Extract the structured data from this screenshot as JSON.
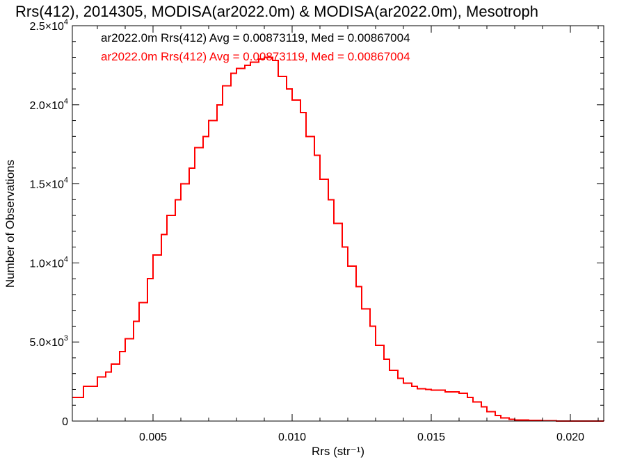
{
  "chart_data": {
    "type": "line",
    "title": "Rrs(412), 2014305, MODISA(ar2022.0m) & MODISA(ar2022.0m), Mesotroph",
    "xlabel": "Rrs (str⁻¹)",
    "ylabel": "Number of Observations",
    "xlim": [
      0.0021,
      0.0212
    ],
    "ylim": [
      0,
      25000
    ],
    "x_ticks": [
      {
        "value": 0.005,
        "label": "0.005"
      },
      {
        "value": 0.01,
        "label": "0.010"
      },
      {
        "value": 0.015,
        "label": "0.015"
      },
      {
        "value": 0.02,
        "label": "0.020"
      }
    ],
    "y_ticks": [
      {
        "value": 0,
        "mantissa": "0",
        "exponent": ""
      },
      {
        "value": 5000,
        "mantissa": "5.0×10",
        "exponent": "3"
      },
      {
        "value": 10000,
        "mantissa": "1.0×10",
        "exponent": "4"
      },
      {
        "value": 15000,
        "mantissa": "1.5×10",
        "exponent": "4"
      },
      {
        "value": 20000,
        "mantissa": "2.0×10",
        "exponent": "4"
      },
      {
        "value": 25000,
        "mantissa": "2.5×10",
        "exponent": "4"
      }
    ],
    "grid": false,
    "legend_position": "top-left",
    "series": [
      {
        "name": "ar2022.0m Rrs(412) Avg = 0.00873119, Med = 0.00867004",
        "color": "#000000",
        "x": [
          0.0021,
          0.0025,
          0.003,
          0.0033,
          0.0035,
          0.0038,
          0.004,
          0.0043,
          0.0045,
          0.0048,
          0.005,
          0.0053,
          0.0055,
          0.0058,
          0.006,
          0.0063,
          0.0065,
          0.0068,
          0.007,
          0.0073,
          0.0075,
          0.0078,
          0.008,
          0.0083,
          0.0085,
          0.0088,
          0.009,
          0.0093,
          0.0095,
          0.0098,
          0.01,
          0.0103,
          0.0105,
          0.0108,
          0.011,
          0.0113,
          0.0115,
          0.0118,
          0.012,
          0.0123,
          0.0125,
          0.0128,
          0.013,
          0.0133,
          0.0135,
          0.0138,
          0.014,
          0.0143,
          0.0145,
          0.0148,
          0.015,
          0.0155,
          0.016,
          0.0163,
          0.0165,
          0.0168,
          0.017,
          0.0173,
          0.0175,
          0.0178,
          0.018,
          0.0185,
          0.019,
          0.0195,
          0.02,
          0.0205,
          0.0212
        ],
        "y": [
          1500,
          2200,
          2800,
          3100,
          3600,
          4400,
          5200,
          6300,
          7500,
          9000,
          10500,
          11800,
          13000,
          14000,
          15000,
          16000,
          17300,
          18000,
          19000,
          20000,
          21200,
          22000,
          22300,
          22500,
          22700,
          22900,
          23000,
          22800,
          21800,
          21000,
          20300,
          19500,
          18000,
          16800,
          15300,
          14000,
          12500,
          11000,
          9800,
          8500,
          7100,
          6000,
          4800,
          3900,
          3200,
          2700,
          2400,
          2200,
          2050,
          2000,
          1950,
          1850,
          1750,
          1500,
          1200,
          900,
          600,
          350,
          200,
          100,
          60,
          35,
          15,
          8,
          5,
          3,
          2
        ]
      },
      {
        "name": "ar2022.0m Rrs(412) Avg = 0.00873119, Med = 0.00867004",
        "color": "#ff0000",
        "x": [
          0.0021,
          0.0025,
          0.003,
          0.0033,
          0.0035,
          0.0038,
          0.004,
          0.0043,
          0.0045,
          0.0048,
          0.005,
          0.0053,
          0.0055,
          0.0058,
          0.006,
          0.0063,
          0.0065,
          0.0068,
          0.007,
          0.0073,
          0.0075,
          0.0078,
          0.008,
          0.0083,
          0.0085,
          0.0088,
          0.009,
          0.0093,
          0.0095,
          0.0098,
          0.01,
          0.0103,
          0.0105,
          0.0108,
          0.011,
          0.0113,
          0.0115,
          0.0118,
          0.012,
          0.0123,
          0.0125,
          0.0128,
          0.013,
          0.0133,
          0.0135,
          0.0138,
          0.014,
          0.0143,
          0.0145,
          0.0148,
          0.015,
          0.0155,
          0.016,
          0.0163,
          0.0165,
          0.0168,
          0.017,
          0.0173,
          0.0175,
          0.0178,
          0.018,
          0.0185,
          0.019,
          0.0195,
          0.02,
          0.0205,
          0.0212
        ],
        "y": [
          1500,
          2200,
          2800,
          3100,
          3600,
          4400,
          5200,
          6300,
          7500,
          9000,
          10500,
          11800,
          13000,
          14000,
          15000,
          16000,
          17300,
          18000,
          19000,
          20000,
          21200,
          22000,
          22300,
          22500,
          22700,
          22900,
          23000,
          22800,
          21800,
          21000,
          20300,
          19500,
          18000,
          16800,
          15300,
          14000,
          12500,
          11000,
          9800,
          8500,
          7100,
          6000,
          4800,
          3900,
          3200,
          2700,
          2400,
          2200,
          2050,
          2000,
          1950,
          1850,
          1750,
          1500,
          1200,
          900,
          600,
          350,
          200,
          100,
          60,
          35,
          15,
          8,
          5,
          3,
          2
        ]
      }
    ]
  }
}
